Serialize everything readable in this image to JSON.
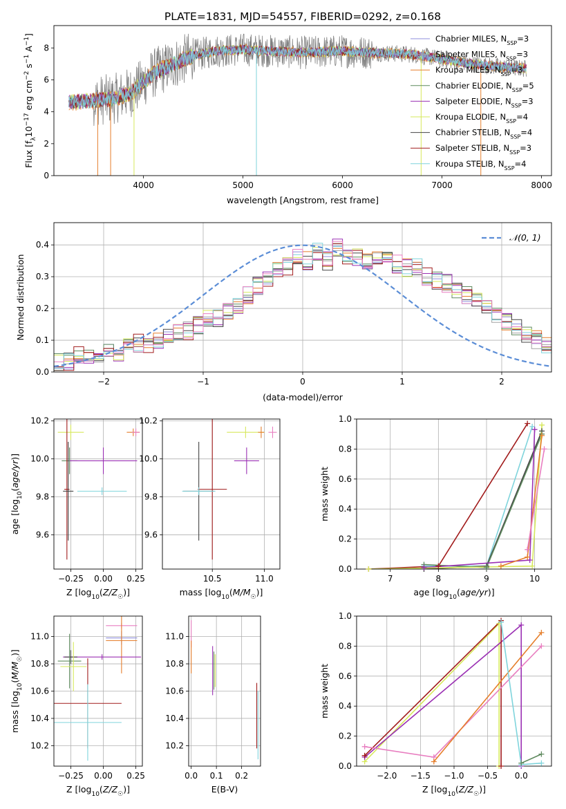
{
  "figure_title": "PLATE=1831, MJD=54557, FIBERID=0292, z=0.168",
  "colors": {
    "chabrier_miles": "#8e8edc",
    "salpeter_miles": "#a3a3a3",
    "kroupa_miles": "#e57e2b",
    "chabrier_elodie": "#5f8a5f",
    "salpeter_elodie": "#9a2fb3",
    "kroupa_elodie": "#d6e85a",
    "chabrier_stelib": "#444444",
    "salpeter_stelib": "#a11b1b",
    "kroupa_stelib": "#7fd4dc",
    "data": "#808080",
    "normal": "#5b8dd6",
    "pink": "#e87ec0"
  },
  "chart_data": [
    {
      "id": "spectrum",
      "type": "line",
      "xlabel": "wavelength [Angstrom, rest frame]",
      "ylabel": "Flux [f_λ 10^-17 erg cm^-2 s^-1 A^-1]",
      "xlim": [
        3100,
        8100
      ],
      "ylim": [
        0,
        9.4
      ],
      "xticks": [
        4000,
        5000,
        6000,
        7000,
        8000
      ],
      "yticks": [
        0,
        2,
        4,
        6,
        8
      ],
      "legend_position": "right",
      "legend": [
        {
          "label": "Chabrier MILES, N_SSP=3",
          "color": "#8e8edc"
        },
        {
          "label": "Salpeter MILES, N_SSP=3",
          "color": "#a3a3a3"
        },
        {
          "label": "Kroupa MILES, N_SSP=3",
          "color": "#e57e2b"
        },
        {
          "label": "Chabrier ELODIE, N_SSP=5",
          "color": "#5f8a5f"
        },
        {
          "label": "Salpeter ELODIE, N_SSP=3",
          "color": "#9a2fb3"
        },
        {
          "label": "Kroupa ELODIE, N_SSP=4",
          "color": "#d6e85a"
        },
        {
          "label": "Chabrier STELIB, N_SSP=4",
          "color": "#444444"
        },
        {
          "label": "Salpeter STELIB, N_SSP=3",
          "color": "#a11b1b"
        },
        {
          "label": "Kroupa STELIB, N_SSP=4",
          "color": "#7fd4dc"
        }
      ],
      "continuum": {
        "x": [
          3250,
          3500,
          3700,
          3900,
          4100,
          4300,
          4500,
          4700,
          5000,
          5300,
          5600,
          6000,
          6300,
          6700,
          7000,
          7300,
          7600,
          7850
        ],
        "y": [
          4.6,
          4.7,
          4.8,
          5.3,
          6.4,
          7.0,
          7.5,
          7.8,
          7.9,
          7.8,
          7.7,
          7.8,
          7.7,
          7.6,
          7.3,
          7.0,
          6.8,
          6.7
        ]
      }
    },
    {
      "id": "residuals",
      "type": "histogram",
      "xlabel": "(data-model)/error",
      "ylabel": "Normed distribution",
      "xlim": [
        -2.5,
        2.5
      ],
      "ylim": [
        0,
        0.47
      ],
      "xticks": [
        -2,
        -1,
        0,
        1,
        2
      ],
      "yticks": [
        0.0,
        0.1,
        0.2,
        0.3,
        0.4
      ],
      "grid": true,
      "legend_position": "top-right",
      "legend": [
        {
          "label": "𝒩(0, 1)",
          "color": "#5b8dd6"
        }
      ],
      "bin_width": 0.1,
      "bin_start": -2.5,
      "envelope": [
        0.03,
        0.03,
        0.05,
        0.05,
        0.05,
        0.07,
        0.06,
        0.08,
        0.09,
        0.08,
        0.1,
        0.11,
        0.12,
        0.13,
        0.15,
        0.17,
        0.17,
        0.19,
        0.21,
        0.24,
        0.27,
        0.29,
        0.32,
        0.33,
        0.36,
        0.35,
        0.38,
        0.35,
        0.39,
        0.37,
        0.36,
        0.35,
        0.37,
        0.35,
        0.34,
        0.33,
        0.33,
        0.3,
        0.29,
        0.28,
        0.26,
        0.24,
        0.22,
        0.2,
        0.18,
        0.16,
        0.14,
        0.12,
        0.1,
        0.08
      ]
    },
    {
      "id": "age-vs-z",
      "type": "errorbar",
      "xlabel": "Z [log10(Z/Z☉)]",
      "ylabel": "age [log10(age/yr)]",
      "xlim": [
        -0.38,
        0.3
      ],
      "ylim": [
        9.42,
        10.21
      ],
      "xticks": [
        -0.25,
        0.0,
        0.25
      ],
      "yticks": [
        9.6,
        9.8,
        10.0,
        10.2
      ],
      "points": [
        {
          "x": -0.25,
          "y": 10.14,
          "xerr": 0.1,
          "yerr": 0.04,
          "c": "kroupa_elodie"
        },
        {
          "x": -0.26,
          "y": 9.99,
          "xerr": 0.06,
          "yerr": 0.07,
          "c": "chabrier_elodie"
        },
        {
          "x": 0.0,
          "y": 9.99,
          "xerr": 0.26,
          "yerr": 0.07,
          "c": "salpeter_elodie"
        },
        {
          "x": -0.28,
          "y": 9.84,
          "xerr": 0.02,
          "yerr": 0.37,
          "c": "salpeter_stelib"
        },
        {
          "x": -0.27,
          "y": 9.83,
          "xerr": 0.04,
          "yerr": 0.26,
          "c": "chabrier_stelib"
        },
        {
          "x": -0.01,
          "y": 9.83,
          "xerr": 0.19,
          "yerr": 0.02,
          "c": "kroupa_stelib"
        },
        {
          "x": 0.23,
          "y": 10.14,
          "xerr": 0.05,
          "yerr": 0.02,
          "c": "kroupa_miles"
        },
        {
          "x": 0.25,
          "y": 10.14,
          "xerr": 0.03,
          "yerr": 0.02,
          "c": "pink"
        }
      ]
    },
    {
      "id": "age-vs-mass",
      "type": "errorbar",
      "xlabel": "mass [log10(M/M☉)]",
      "ylabel": "",
      "xlim": [
        10.02,
        11.15
      ],
      "ylim": [
        9.42,
        10.21
      ],
      "xticks": [
        10.5,
        11.0
      ],
      "yticks": [
        9.6,
        9.8,
        10.0,
        10.2
      ],
      "points": [
        {
          "x": 10.82,
          "y": 10.14,
          "xerr": 0.18,
          "yerr": 0.03,
          "c": "kroupa_elodie"
        },
        {
          "x": 10.83,
          "y": 9.99,
          "xerr": 0.12,
          "yerr": 0.07,
          "c": "salpeter_elodie"
        },
        {
          "x": 10.5,
          "y": 9.84,
          "xerr": 0.14,
          "yerr": 0.37,
          "c": "salpeter_stelib"
        },
        {
          "x": 10.37,
          "y": 9.83,
          "xerr": 0.15,
          "yerr": 0.26,
          "c": "chabrier_stelib"
        },
        {
          "x": 10.37,
          "y": 9.83,
          "xerr": 0.16,
          "yerr": 0.02,
          "c": "kroupa_stelib"
        },
        {
          "x": 10.97,
          "y": 10.14,
          "xerr": 0.03,
          "yerr": 0.03,
          "c": "kroupa_miles"
        },
        {
          "x": 11.08,
          "y": 10.14,
          "xerr": 0.04,
          "yerr": 0.03,
          "c": "pink"
        }
      ]
    },
    {
      "id": "weight-vs-age",
      "type": "line",
      "xlabel": "age [log10(age/yr)]",
      "ylabel": "mass weight",
      "xlim": [
        6.3,
        10.35
      ],
      "ylim": [
        0,
        1.0
      ],
      "xticks": [
        7,
        8,
        9,
        10
      ],
      "yticks": [
        0.0,
        0.2,
        0.4,
        0.6,
        0.8,
        1.0
      ],
      "series": [
        {
          "c": "salpeter_stelib",
          "x": [
            6.55,
            8.0,
            9.85
          ],
          "y": [
            0.0,
            0.02,
            0.97
          ]
        },
        {
          "c": "kroupa_stelib",
          "x": [
            7.7,
            9.0,
            9.95
          ],
          "y": [
            0.02,
            0.02,
            0.95
          ]
        },
        {
          "c": "chabrier_stelib",
          "x": [
            7.7,
            9.0,
            10.15
          ],
          "y": [
            0.0,
            0.02,
            0.92
          ]
        },
        {
          "c": "chabrier_elodie",
          "x": [
            7.7,
            9.0,
            10.15
          ],
          "y": [
            0.03,
            0.01,
            0.9
          ]
        },
        {
          "c": "salpeter_elodie",
          "x": [
            7.7,
            9.9,
            10.0
          ],
          "y": [
            0.01,
            0.06,
            0.93
          ]
        },
        {
          "c": "kroupa_elodie",
          "x": [
            6.55,
            9.95,
            10.15
          ],
          "y": [
            0.0,
            0.02,
            0.96
          ]
        },
        {
          "c": "kroupa_miles",
          "x": [
            9.3,
            9.85,
            10.15
          ],
          "y": [
            0.02,
            0.08,
            0.89
          ]
        },
        {
          "c": "pink",
          "x": [
            9.85,
            10.2
          ],
          "y": [
            0.13,
            0.8
          ]
        }
      ]
    },
    {
      "id": "mass-vs-z",
      "type": "errorbar",
      "xlabel": "Z [log10(Z/Z☉)]",
      "ylabel": "mass [log10(M/M☉)]",
      "xlim": [
        -0.38,
        0.3
      ],
      "ylim": [
        10.05,
        11.15
      ],
      "xticks": [
        -0.25,
        0.0,
        0.25
      ],
      "yticks": [
        10.2,
        10.4,
        10.6,
        10.8,
        11.0
      ],
      "points": [
        {
          "x": 0.14,
          "y": 11.08,
          "xerr": 0.12,
          "yerr": 0.02,
          "c": "pink"
        },
        {
          "x": 0.14,
          "y": 10.99,
          "xerr": 0.12,
          "yerr": 0.05,
          "c": "chabrier_miles"
        },
        {
          "x": 0.14,
          "y": 10.97,
          "xerr": 0.12,
          "yerr": 0.24,
          "c": "kroupa_miles"
        },
        {
          "x": -0.01,
          "y": 10.85,
          "xerr": 0.3,
          "yerr": 0.02,
          "c": "salpeter_elodie"
        },
        {
          "x": -0.25,
          "y": 10.85,
          "xerr": 0.05,
          "yerr": 0.05,
          "c": "chabrier_stelib"
        },
        {
          "x": -0.26,
          "y": 10.82,
          "xerr": 0.09,
          "yerr": 0.2,
          "c": "chabrier_elodie"
        },
        {
          "x": -0.23,
          "y": 10.78,
          "xerr": 0.1,
          "yerr": 0.18,
          "c": "kroupa_elodie"
        },
        {
          "x": -0.12,
          "y": 10.51,
          "xerr": 0.26,
          "yerr": 0.33,
          "c": "salpeter_stelib"
        },
        {
          "x": -0.12,
          "y": 10.37,
          "xerr": 0.26,
          "yerr": 0.28,
          "c": "kroupa_stelib"
        }
      ]
    },
    {
      "id": "mass-vs-ebv",
      "type": "errorbar",
      "xlabel": "E(B-V)",
      "ylabel": "",
      "xlim": [
        -0.01,
        0.275
      ],
      "ylim": [
        10.05,
        11.15
      ],
      "xticks": [
        0.0,
        0.1,
        0.2
      ],
      "yticks": [
        10.2,
        10.4,
        10.6,
        10.8,
        11.0
      ],
      "points": [
        {
          "x": 0.0,
          "y": 11.02,
          "xerr": 0.0,
          "yerr": 0.1,
          "c": "pink"
        },
        {
          "x": 0.0,
          "y": 10.85,
          "xerr": 0.0,
          "yerr": 0.12,
          "c": "kroupa_miles"
        },
        {
          "x": 0.085,
          "y": 10.75,
          "xerr": 0.0,
          "yerr": 0.18,
          "c": "salpeter_elodie"
        },
        {
          "x": 0.09,
          "y": 10.75,
          "xerr": 0.0,
          "yerr": 0.14,
          "c": "chabrier_elodie"
        },
        {
          "x": 0.095,
          "y": 10.75,
          "xerr": 0.0,
          "yerr": 0.12,
          "c": "kroupa_elodie"
        },
        {
          "x": 0.26,
          "y": 10.42,
          "xerr": 0.0,
          "yerr": 0.24,
          "c": "salpeter_stelib"
        },
        {
          "x": 0.265,
          "y": 10.35,
          "xerr": 0.0,
          "yerr": 0.25,
          "c": "kroupa_stelib"
        }
      ]
    },
    {
      "id": "weight-vs-z",
      "type": "line",
      "xlabel": "Z [log10(Z/Z☉)]",
      "ylabel": "mass weight",
      "xlim": [
        -2.45,
        0.45
      ],
      "ylim": [
        0,
        1.0
      ],
      "xticks": [
        -2.0,
        -1.5,
        -1.0,
        -0.5,
        0.0
      ],
      "yticks": [
        0.0,
        0.2,
        0.4,
        0.6,
        0.8,
        1.0
      ],
      "series": [
        {
          "c": "kroupa_elodie",
          "x": [
            -2.33,
            -0.33,
            -0.33
          ],
          "y": [
            0.03,
            0.95,
            0.0
          ]
        },
        {
          "c": "salpeter_elodie",
          "x": [
            -2.33,
            0.0,
            0.0
          ],
          "y": [
            0.06,
            0.94,
            0.0
          ]
        },
        {
          "c": "salpeter_stelib",
          "x": [
            -2.33,
            -0.3,
            -0.3
          ],
          "y": [
            0.07,
            0.97,
            0.0
          ]
        },
        {
          "c": "pink",
          "x": [
            -2.33,
            -1.3,
            0.3
          ],
          "y": [
            0.13,
            0.06,
            0.8
          ]
        },
        {
          "c": "kroupa_miles",
          "x": [
            -1.3,
            0.3
          ],
          "y": [
            0.03,
            0.89
          ]
        },
        {
          "c": "kroupa_stelib",
          "x": [
            -0.3,
            0.0,
            0.3
          ],
          "y": [
            0.96,
            0.01,
            0.02
          ]
        },
        {
          "c": "chabrier_elodie",
          "x": [
            0.0,
            0.3
          ],
          "y": [
            0.02,
            0.08
          ]
        }
      ]
    }
  ],
  "labels": {
    "spectrum_xlabel": "wavelength [Angstrom, rest frame]",
    "hist_xlabel": "(data-model)/error",
    "hist_ylabel": "Normed distribution",
    "mass_weight": "mass weight",
    "ebv_xlabel": "E(B-V)"
  }
}
